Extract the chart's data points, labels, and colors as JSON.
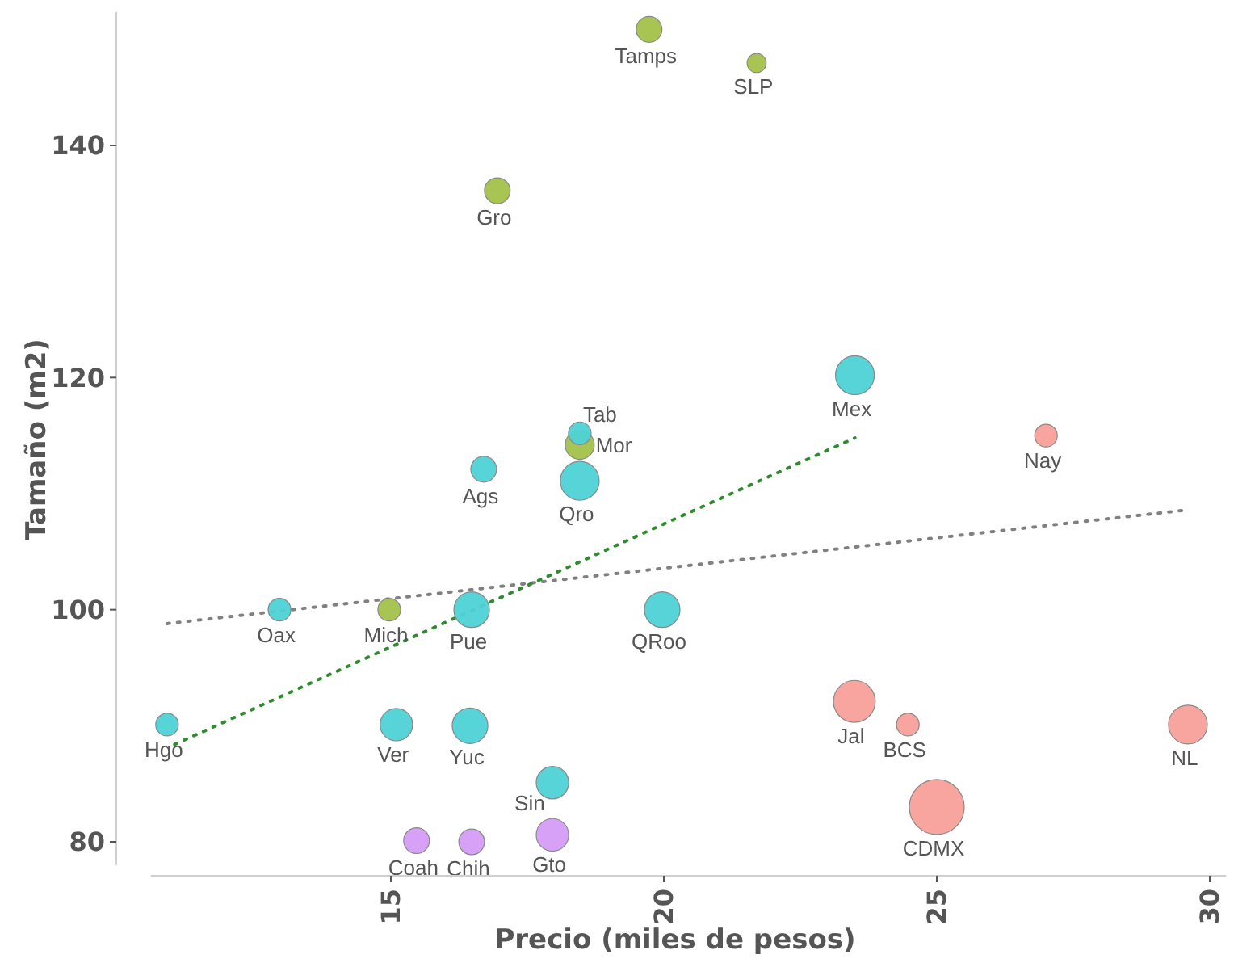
{
  "chart_data": {
    "type": "bubble",
    "xlabel": "Precio (miles de pesos)",
    "ylabel": "Tamaño (m2)",
    "xlim": [
      10.6,
      30.3
    ],
    "ylim": [
      78,
      151.5
    ],
    "xticks": [
      15,
      20,
      25,
      30
    ],
    "yticks": [
      80,
      100,
      120,
      140
    ],
    "series": [
      {
        "color": "#a3c24a",
        "x": [
          19.73,
          21.7,
          16.95,
          18.46,
          14.97
        ],
        "values": [
          150,
          147.1,
          136.1,
          114.2,
          100
        ],
        "sizes": [
          0.22,
          0.12,
          0.22,
          0.28,
          0.17
        ],
        "value_labels": [
          "Tamps",
          "SLP",
          "Gro",
          "Mor",
          "Mich"
        ]
      },
      {
        "color": "#4dd2d6",
        "x": [
          23.5,
          18.46,
          16.7,
          18.46,
          12.96,
          16.48,
          19.97,
          10.9,
          15.1,
          16.45,
          17.96
        ],
        "values": [
          120.2,
          115.2,
          112.1,
          111.1,
          100,
          100,
          100,
          90.1,
          90.1,
          90,
          85.1
        ],
        "sizes": [
          0.5,
          0.17,
          0.22,
          0.5,
          0.17,
          0.42,
          0.42,
          0.17,
          0.35,
          0.42,
          0.35
        ],
        "value_labels": [
          "Mex",
          "Tab",
          "Ags",
          "Qro",
          "Oax",
          "Pue",
          "QRoo",
          "Hgo",
          "Ver",
          "Yuc",
          "Sin"
        ]
      },
      {
        "color": "#f8a09a",
        "x": [
          27.0,
          23.49,
          24.47,
          25.0,
          29.6
        ],
        "values": [
          115,
          92.1,
          90.1,
          83,
          90.1
        ],
        "sizes": [
          0.17,
          0.58,
          0.17,
          1,
          0.5
        ],
        "value_labels": [
          "Nay",
          "Jal",
          "BCS",
          "CDMX",
          "NL"
        ]
      },
      {
        "color": "#d49cf5",
        "x": [
          15.47,
          16.48,
          17.96
        ],
        "values": [
          80.1,
          80,
          80.6
        ],
        "sizes": [
          0.22,
          0.22,
          0.35
        ],
        "value_labels": [
          "Coah",
          "Chih",
          "Gto"
        ]
      },
      {
        "type": "line",
        "color": "#808080",
        "line_style": "dotted",
        "x": [
          10.9,
          29.6
        ],
        "values": [
          98.8,
          108.6
        ]
      },
      {
        "type": "line",
        "color": "#2e8b2e",
        "line_style": "dotted",
        "x": [
          11.04,
          23.5
        ],
        "values": [
          88.4,
          114.8
        ]
      }
    ]
  }
}
